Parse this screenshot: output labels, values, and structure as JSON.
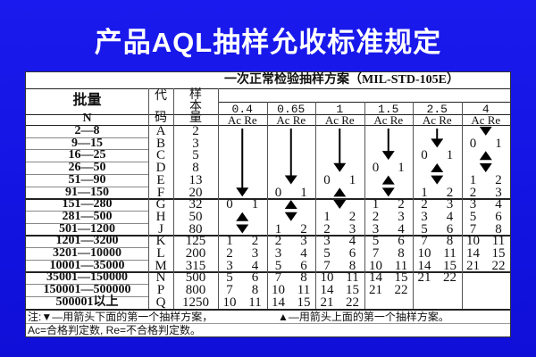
{
  "slide": {
    "title": "产品AQL抽样允收标准规定",
    "background_color": "#1414e6"
  },
  "table": {
    "caption": "一次正常检验抽样方案（MIL-STD-105E）",
    "lot_header": "批量",
    "lot_sub": "N",
    "code_header_top": "代",
    "code_header_bottom": "码",
    "sample_header": [
      "样",
      "本",
      "量"
    ],
    "ac_re_label": "Ac Re",
    "aql_levels": [
      "0.4",
      "0.65",
      "1",
      "1.5",
      "2.5",
      "4"
    ],
    "rows": [
      {
        "lot": "2—8",
        "code": "A",
        "n": "2"
      },
      {
        "lot": "9—15",
        "code": "B",
        "n": "3"
      },
      {
        "lot": "16—25",
        "code": "C",
        "n": "5"
      },
      {
        "lot": "26—50",
        "code": "D",
        "n": "8"
      },
      {
        "lot": "51—90",
        "code": "E",
        "n": "13"
      },
      {
        "lot": "91—150",
        "code": "F",
        "n": "20"
      },
      {
        "lot": "151—280",
        "code": "G",
        "n": "32"
      },
      {
        "lot": "281—500",
        "code": "H",
        "n": "50"
      },
      {
        "lot": "501—1200",
        "code": "J",
        "n": "80"
      },
      {
        "lot": "1201—3200",
        "code": "K",
        "n": "125"
      },
      {
        "lot": "3201—10000",
        "code": "L",
        "n": "200"
      },
      {
        "lot": "10001—35000",
        "code": "M",
        "n": "315"
      },
      {
        "lot": "35001—150000",
        "code": "N",
        "n": "500"
      },
      {
        "lot": "150001—500000",
        "code": "P",
        "n": "800"
      },
      {
        "lot": "500001以上",
        "code": "Q",
        "n": "1250"
      }
    ],
    "cells": [
      [
        "v",
        "v",
        "v",
        "v",
        "v",
        "v",
        [
          "0",
          "1"
        ],
        "^",
        "v",
        [
          "1",
          "2"
        ],
        [
          "2",
          "3"
        ],
        [
          "3",
          "4"
        ],
        [
          "5",
          "6"
        ],
        [
          "7",
          "8"
        ],
        [
          "10",
          "11"
        ]
      ],
      [
        "v",
        "v",
        "v",
        "v",
        "v",
        [
          "0",
          "1"
        ],
        "^",
        "v",
        [
          "1",
          "2"
        ],
        [
          "2",
          "3"
        ],
        [
          "3",
          "4"
        ],
        [
          "5",
          "6"
        ],
        [
          "7",
          "8"
        ],
        [
          "10",
          "11"
        ],
        [
          "14",
          "15"
        ]
      ],
      [
        "v",
        "v",
        "v",
        "v",
        [
          "0",
          "1"
        ],
        "^",
        "v",
        [
          "1",
          "2"
        ],
        [
          "2",
          "3"
        ],
        [
          "3",
          "4"
        ],
        [
          "5",
          "6"
        ],
        [
          "7",
          "8"
        ],
        [
          "10",
          "11"
        ],
        [
          "14",
          "15"
        ],
        [
          "21",
          "22"
        ]
      ],
      [
        "v",
        "v",
        "v",
        [
          "0",
          "1"
        ],
        "^",
        "v",
        [
          "1",
          "2"
        ],
        [
          "2",
          "3"
        ],
        [
          "3",
          "4"
        ],
        [
          "5",
          "6"
        ],
        [
          "7",
          "8"
        ],
        [
          "10",
          "11"
        ],
        [
          "14",
          "15"
        ],
        [
          "21",
          "22"
        ],
        ""
      ],
      [
        "v",
        "v",
        [
          "0",
          "1"
        ],
        "^",
        "v",
        [
          "1",
          "2"
        ],
        [
          "2",
          "3"
        ],
        [
          "3",
          "4"
        ],
        [
          "5",
          "6"
        ],
        [
          "7",
          "8"
        ],
        [
          "10",
          "11"
        ],
        [
          "14",
          "15"
        ],
        [
          "21",
          "22"
        ],
        "",
        ""
      ],
      [
        "v",
        [
          "0",
          "1"
        ],
        "^",
        "v",
        [
          "1",
          "2"
        ],
        [
          "2",
          "3"
        ],
        [
          "3",
          "4"
        ],
        [
          "5",
          "6"
        ],
        [
          "7",
          "8"
        ],
        [
          "10",
          "11"
        ],
        [
          "14",
          "15"
        ],
        [
          "21",
          "22"
        ],
        "",
        "",
        ""
      ]
    ],
    "note_down": "注:▼—用箭头下面的第一个抽样方案，",
    "note_up": "▲—用箭头上面的第一个抽样方案。",
    "note_def": "Ac=合格判定数, Re=不合格判定数。"
  }
}
